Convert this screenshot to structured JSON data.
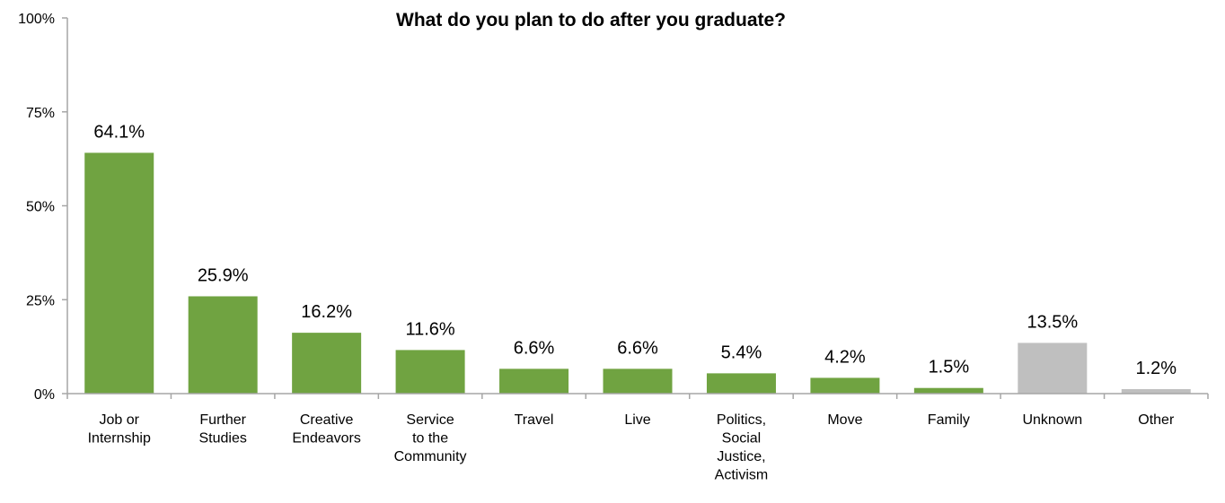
{
  "chart_data": {
    "type": "bar",
    "title": "What do you plan to do after you graduate?",
    "xlabel": "",
    "ylabel": "",
    "ylim": [
      0,
      100
    ],
    "yticks": [
      0,
      25,
      50,
      75,
      100
    ],
    "ytick_labels": [
      "0%",
      "25%",
      "50%",
      "75%",
      "100%"
    ],
    "grid": false,
    "categories": [
      "Job or Internship",
      "Further Studies",
      "Creative Endeavors",
      "Service to the Community",
      "Travel",
      "Live",
      "Politics, Social Justice, Activism",
      "Move",
      "Family",
      "Unknown",
      "Other"
    ],
    "category_label_lines": [
      [
        "Job or",
        "Internship"
      ],
      [
        "Further",
        "Studies"
      ],
      [
        "Creative",
        "Endeavors"
      ],
      [
        "Service",
        "to the",
        "Community"
      ],
      [
        "Travel"
      ],
      [
        "Live"
      ],
      [
        "Politics,",
        "Social",
        "Justice,",
        "Activism"
      ],
      [
        "Move"
      ],
      [
        "Family"
      ],
      [
        "Unknown"
      ],
      [
        "Other"
      ]
    ],
    "values": [
      64.1,
      25.9,
      16.2,
      11.6,
      6.6,
      6.6,
      5.4,
      4.2,
      1.5,
      13.5,
      1.2
    ],
    "data_labels": [
      "64.1%",
      "25.9%",
      "16.2%",
      "11.6%",
      "6.6%",
      "6.6%",
      "5.4%",
      "4.2%",
      "1.5%",
      "13.5%",
      "1.2%"
    ],
    "bar_colors": [
      "#70a341",
      "#70a341",
      "#70a341",
      "#70a341",
      "#70a341",
      "#70a341",
      "#70a341",
      "#70a341",
      "#70a341",
      "#bfbfbf",
      "#bfbfbf"
    ],
    "axis_color": "#a6a6a6"
  }
}
